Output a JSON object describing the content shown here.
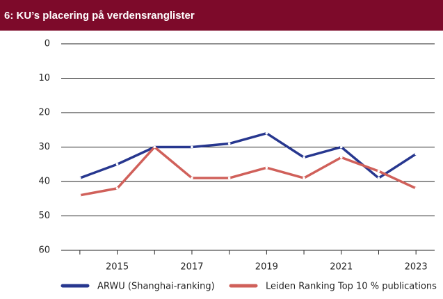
{
  "chart_data": {
    "type": "line",
    "title": "6: KU’s placering på verdensranglister",
    "x": [
      2014,
      2015,
      2016,
      2017,
      2018,
      2019,
      2020,
      2021,
      2022,
      2023
    ],
    "xlim": [
      2013.5,
      2023.5
    ],
    "xticks": [
      2015,
      2017,
      2019,
      2021,
      2023
    ],
    "ylim": [
      60,
      0
    ],
    "yticks": [
      0,
      10,
      20,
      30,
      40,
      50,
      60
    ],
    "grid": true,
    "legend": "bottom",
    "series": [
      {
        "name": "ARWU (Shanghai-ranking)",
        "color": "#27378f",
        "values": [
          39,
          35,
          30,
          30,
          29,
          26,
          33,
          30,
          39,
          32
        ]
      },
      {
        "name": "Leiden Ranking Top 10 % publications",
        "color": "#d0605a",
        "values": [
          44,
          42,
          30,
          39,
          39,
          36,
          39,
          33,
          37,
          42
        ]
      }
    ]
  }
}
